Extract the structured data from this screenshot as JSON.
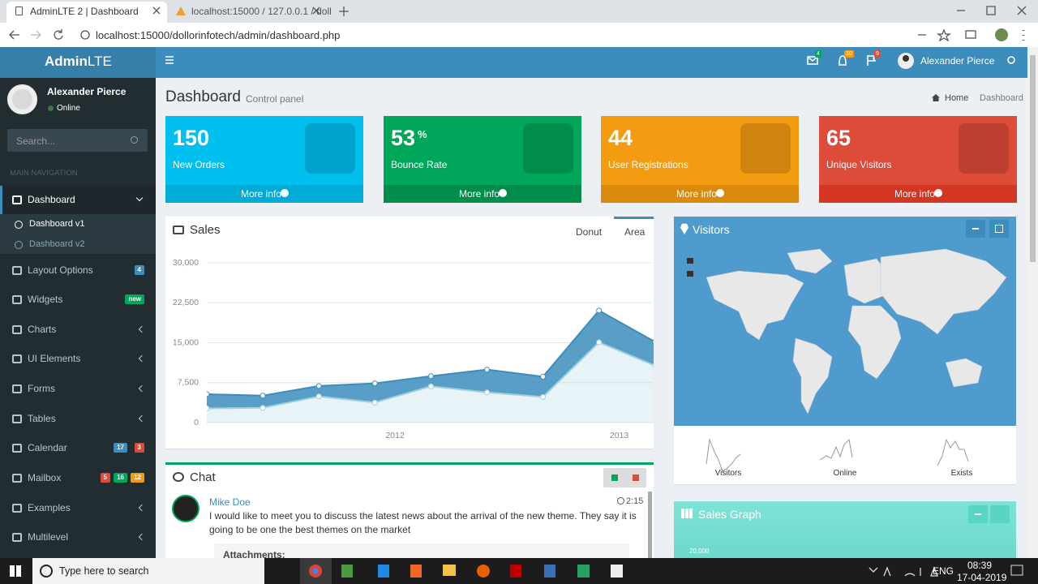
{
  "browser": {
    "tabs": [
      "AdminLTE 2 | Dashboard",
      "localhost:15000 / 127.0.0.1 / doll"
    ],
    "url": "localhost:15000/dollorinfotech/admin/dashboard.php"
  },
  "header": {
    "logo_bold": "Admin",
    "logo_light": "LTE",
    "badges": [
      "4",
      "10",
      "9"
    ],
    "user": "Alexander Pierce"
  },
  "sidebar": {
    "user": "Alexander Pierce",
    "status": "Online",
    "search_placeholder": "Search...",
    "nav_header": "MAIN NAVIGATION",
    "items": [
      {
        "label": "Dashboard",
        "children": [
          "Dashboard v1",
          "Dashboard v2"
        ]
      },
      {
        "label": "Layout Options",
        "badges": [
          "4"
        ]
      },
      {
        "label": "Widgets",
        "badges": [
          "new"
        ]
      },
      {
        "label": "Charts"
      },
      {
        "label": "UI Elements"
      },
      {
        "label": "Forms"
      },
      {
        "label": "Tables"
      },
      {
        "label": "Calendar",
        "badges": [
          "17",
          "3"
        ]
      },
      {
        "label": "Mailbox",
        "badges": [
          "5",
          "16",
          "12"
        ]
      },
      {
        "label": "Examples"
      },
      {
        "label": "Multilevel"
      }
    ]
  },
  "content": {
    "title": "Dashboard",
    "subtitle": "Control panel",
    "breadcrumb": [
      "Home",
      "Dashboard"
    ],
    "stat_boxes": [
      {
        "value": 150,
        "label": "New Orders",
        "link": "More info"
      },
      {
        "value": 53,
        "unit": "%",
        "label": "Bounce Rate",
        "link": "More info"
      },
      {
        "value": 44,
        "label": "User Registrations",
        "link": "More info"
      },
      {
        "value": 65,
        "label": "Unique Visitors",
        "link": "More info"
      }
    ],
    "sales": {
      "title": "Sales",
      "tabs": [
        "Donut",
        "Area"
      ],
      "chart": {
        "type": "area",
        "stacked": true,
        "x": [
          2011.16,
          2011.41,
          2011.66,
          2011.91,
          2012.16,
          2012.41,
          2012.66,
          2012.91,
          2013.16
        ],
        "series": [
          {
            "color": "#a0d0e0",
            "values": [
              2666,
              2778,
              4912,
              3767,
              6810,
              5670,
              4820,
              15073,
              10687
            ]
          },
          {
            "color": "#3c8dbc",
            "values": [
              2666,
              2294,
              1969,
              3597,
              1914,
              4293,
              3795,
              5967,
              4460
            ]
          }
        ],
        "xlim": [
          2011.16,
          2013.15
        ],
        "xticks": [
          2012,
          2013
        ],
        "ylim": [
          0,
          30000
        ],
        "yticks": [
          0,
          {
            "value": 7500,
            "label": "7,500"
          },
          {
            "value": 15000,
            "label": "15,000"
          },
          {
            "value": 22500,
            "label": "22,500"
          },
          {
            "value": 30000,
            "label": "30,000"
          }
        ],
        "grid": true
      }
    },
    "visitors": {
      "title": "Visitors",
      "stats": [
        "Visitors",
        "Online",
        "Exists"
      ]
    },
    "chat": {
      "title": "Chat",
      "messages": [
        {
          "name": "Mike Doe",
          "time": "2:15",
          "text": "I would like to meet you to discuss the latest news about the arrival of the new theme. They say it is going to be one the best themes on the market",
          "attachments": "Attachments:"
        }
      ]
    },
    "sales_graph": {
      "title": "Sales Graph",
      "ytick": "20,000"
    }
  },
  "taskbar": {
    "search": "Type here to search",
    "language": "ENG",
    "time": "08:39",
    "date": "17-04-2019"
  }
}
